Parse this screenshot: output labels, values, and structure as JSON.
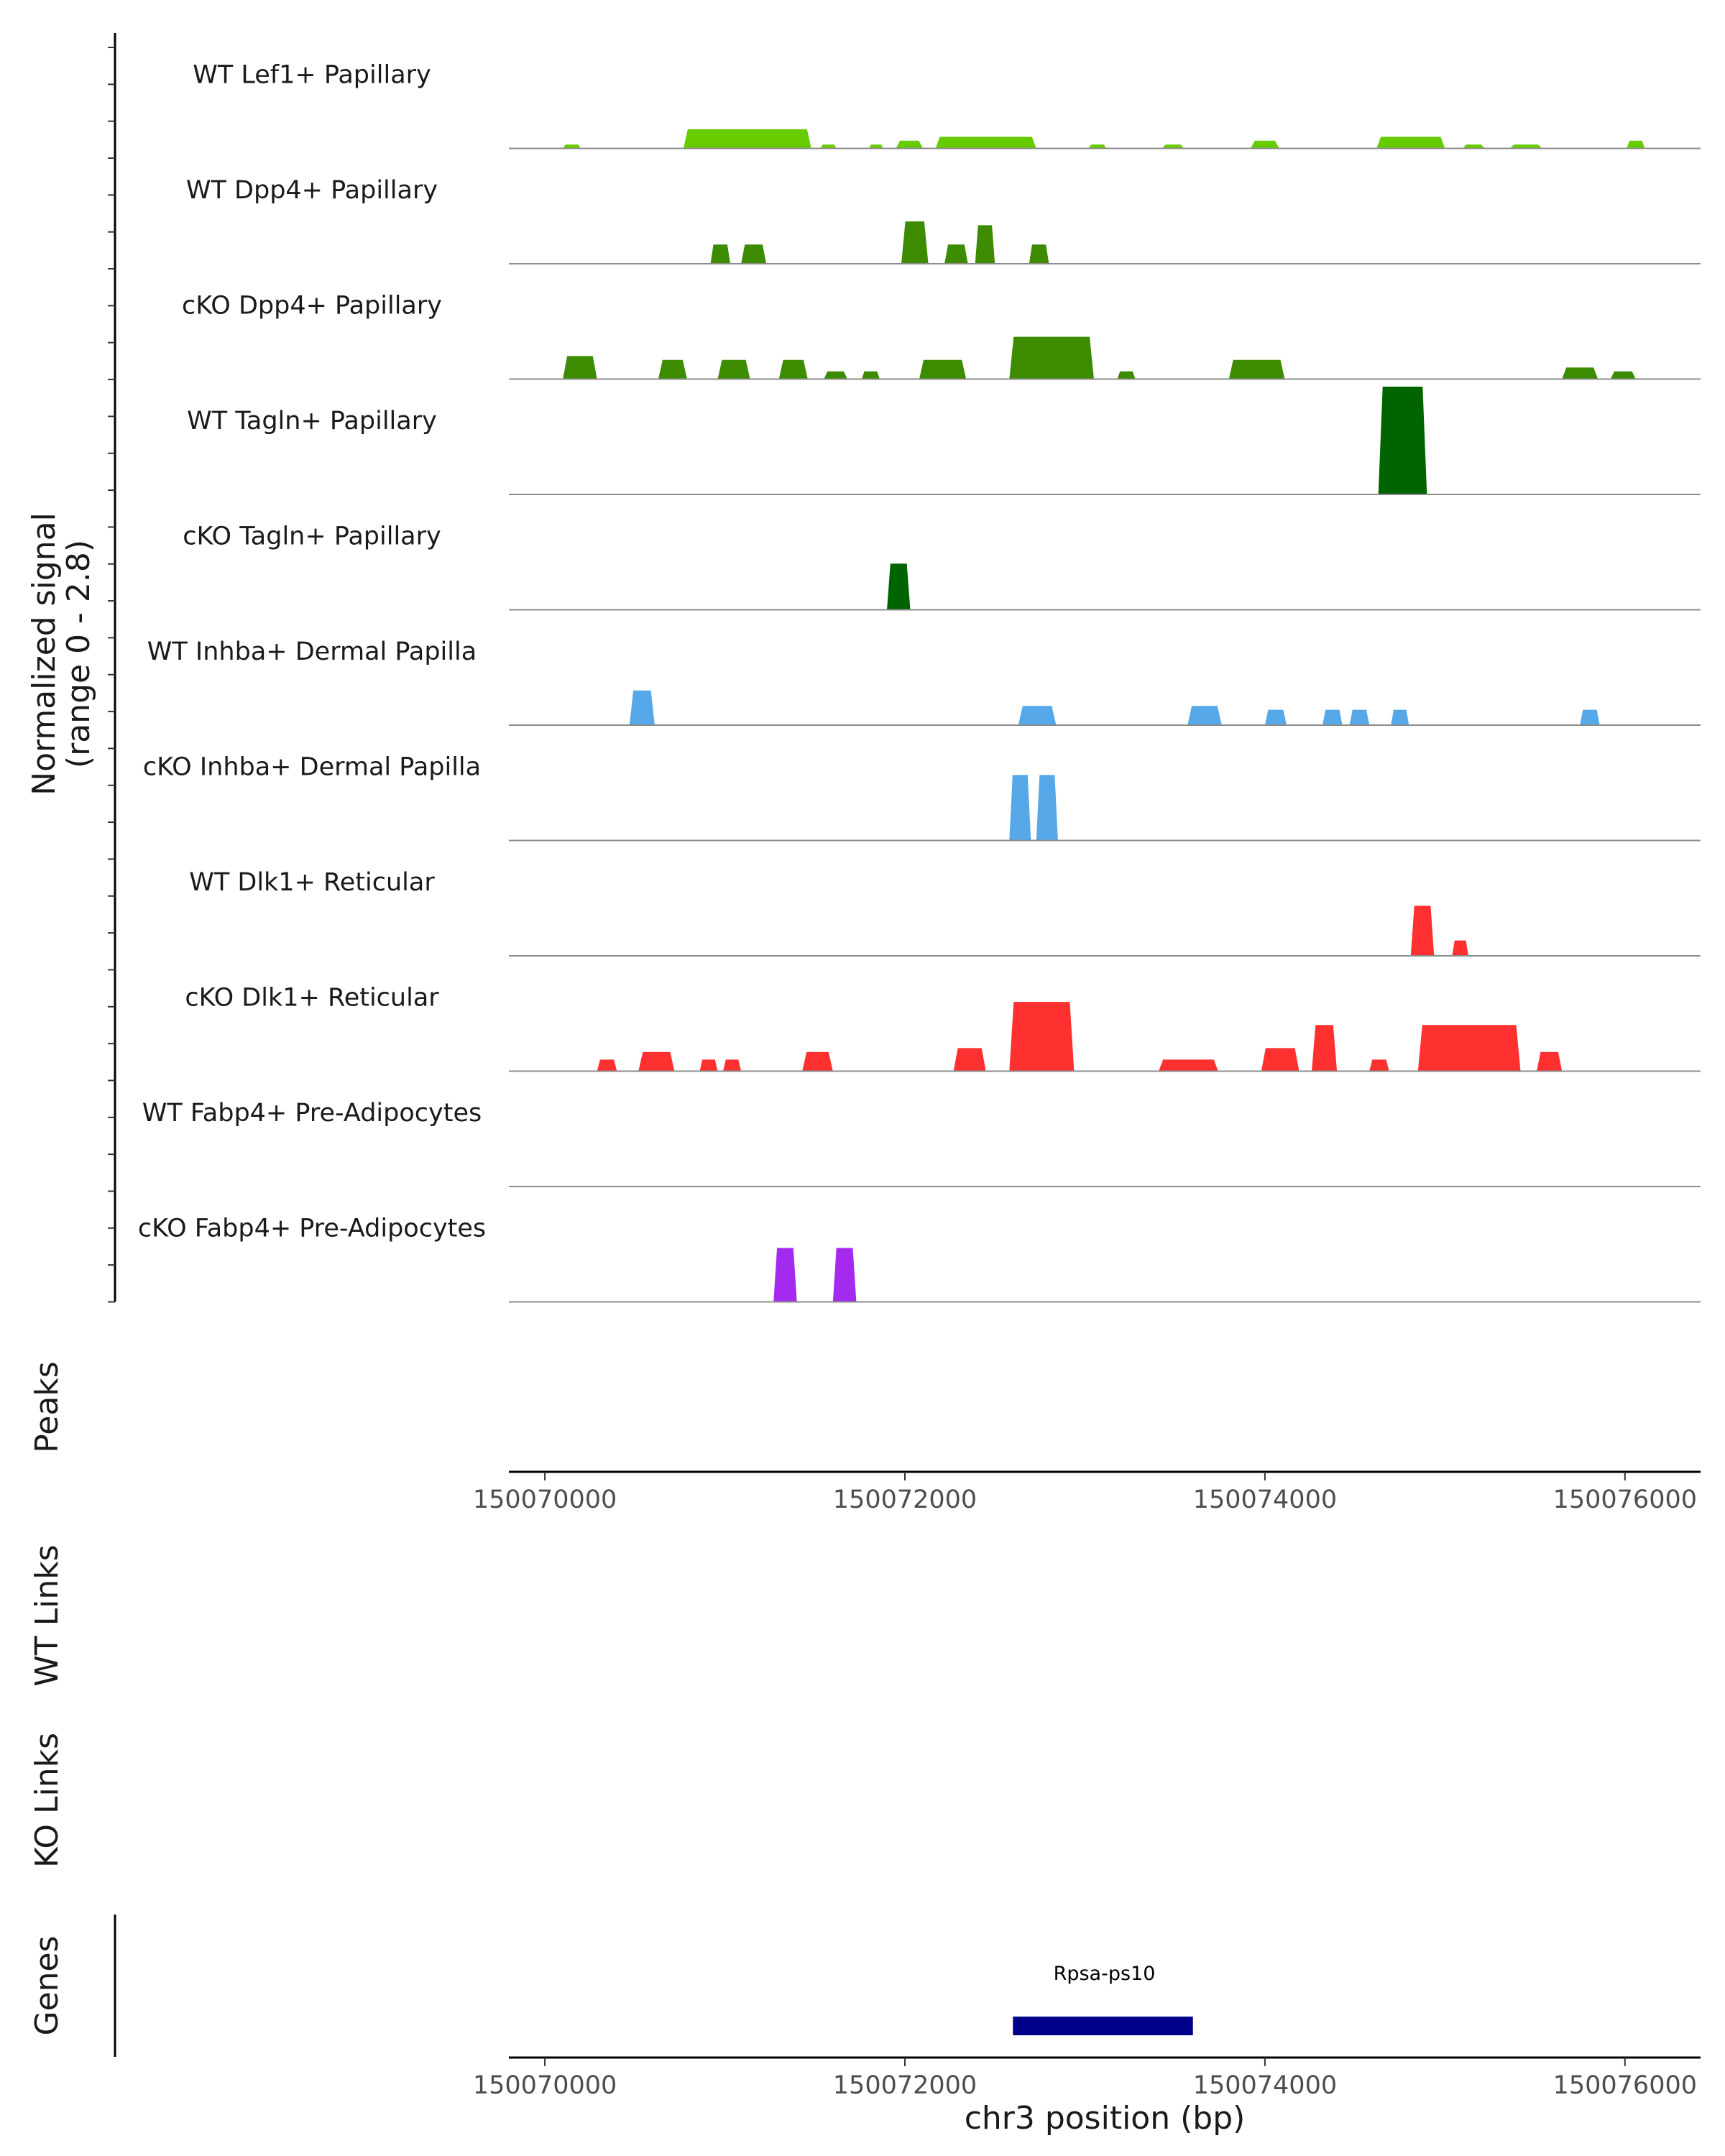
{
  "chart_data": {
    "type": "area",
    "title": "",
    "region": {
      "chrom": "chr3",
      "start": 150069800,
      "end": 150076420
    },
    "signal_panel": {
      "ylabel_line1": "Normalized signal",
      "ylabel_line2": "(range 0 - 2.8)",
      "ylim": [
        0,
        2.8
      ],
      "tracks": [
        {
          "name": "WT Lef1+ Papillary",
          "color": "#66cc00",
          "segments": [
            [
              150070100,
              150070200,
              0.1
            ],
            [
              150070770,
              150071480,
              0.5
            ],
            [
              150071530,
              150071620,
              0.1
            ],
            [
              150071800,
              150071880,
              0.1
            ],
            [
              150071950,
              150072100,
              0.2
            ],
            [
              150072170,
              150072730,
              0.3
            ],
            [
              150073020,
              150073120,
              0.1
            ],
            [
              150073430,
              150073550,
              0.1
            ],
            [
              150073920,
              150074080,
              0.2
            ],
            [
              150074620,
              150075000,
              0.3
            ],
            [
              150075100,
              150075220,
              0.1
            ],
            [
              150075360,
              150075540,
              0.1
            ],
            [
              150076010,
              150076110,
              0.2
            ]
          ]
        },
        {
          "name": "WT Dpp4+ Papillary",
          "color": "#3d8b00",
          "segments": [
            [
              150070920,
              150071030,
              0.5
            ],
            [
              150071090,
              150071230,
              0.5
            ],
            [
              150071980,
              150072130,
              1.1
            ],
            [
              150072220,
              150072350,
              0.5
            ],
            [
              150072390,
              150072500,
              1.0
            ],
            [
              150072690,
              150072800,
              0.5
            ]
          ]
        },
        {
          "name": "cKO Dpp4+ Papillary",
          "color": "#3d8b00",
          "segments": [
            [
              150070100,
              150070290,
              0.6
            ],
            [
              150070630,
              150070790,
              0.5
            ],
            [
              150070960,
              150071140,
              0.5
            ],
            [
              150071300,
              150071460,
              0.5
            ],
            [
              150071550,
              150071680,
              0.2
            ],
            [
              150071760,
              150071860,
              0.2
            ],
            [
              150072080,
              150072340,
              0.5
            ],
            [
              150072580,
              150073050,
              1.1
            ],
            [
              150073180,
              150073280,
              0.2
            ],
            [
              150073800,
              150074110,
              0.5
            ],
            [
              150075650,
              150075850,
              0.3
            ],
            [
              150075920,
              150076060,
              0.2
            ]
          ]
        },
        {
          "name": "WT Tagln+ Papillary",
          "color": "#006400",
          "segments": [
            [
              150074630,
              150074900,
              2.8
            ]
          ]
        },
        {
          "name": "cKO Tagln+ Papillary",
          "color": "#006400",
          "segments": [
            [
              150071900,
              150072030,
              1.2
            ]
          ]
        },
        {
          "name": "WT Inhba+ Dermal Papilla",
          "color": "#56a8e8",
          "segments": [
            [
              150070470,
              150070610,
              0.9
            ],
            [
              150072630,
              150072840,
              0.5
            ],
            [
              150073570,
              150073760,
              0.5
            ],
            [
              150074000,
              150074120,
              0.4
            ],
            [
              150074320,
              150074430,
              0.4
            ],
            [
              150074470,
              150074580,
              0.4
            ],
            [
              150074700,
              150074800,
              0.4
            ],
            [
              150075750,
              150075860,
              0.4
            ]
          ]
        },
        {
          "name": "cKO Inhba+ Dermal Papilla",
          "color": "#56a8e8",
          "segments": [
            [
              150072580,
              150072700,
              1.7
            ],
            [
              150072730,
              150072850,
              1.7
            ]
          ]
        },
        {
          "name": "WT Dlk1+ Reticular",
          "color": "#ff3030",
          "segments": [
            [
              150074810,
              150074940,
              1.3
            ],
            [
              150075040,
              150075130,
              0.4
            ]
          ]
        },
        {
          "name": "cKO Dlk1+ Reticular",
          "color": "#ff3030",
          "segments": [
            [
              150070290,
              150070400,
              0.3
            ],
            [
              150070520,
              150070720,
              0.5
            ],
            [
              150070860,
              150070960,
              0.3
            ],
            [
              150070990,
              150071090,
              0.3
            ],
            [
              150071430,
              150071600,
              0.5
            ],
            [
              150072270,
              150072450,
              0.6
            ],
            [
              150072580,
              150072940,
              1.8
            ],
            [
              150073410,
              150073740,
              0.3
            ],
            [
              150073980,
              150074190,
              0.6
            ],
            [
              150074260,
              150074400,
              1.2
            ],
            [
              150074580,
              150074690,
              0.3
            ],
            [
              150074850,
              150075420,
              1.2
            ],
            [
              150075510,
              150075650,
              0.5
            ]
          ]
        },
        {
          "name": "WT Fabp4+ Pre-Adipocytes",
          "color": "#a52af0",
          "segments": []
        },
        {
          "name": "cKO Fabp4+ Pre-Adipocytes",
          "color": "#a52af0",
          "segments": [
            [
              150071270,
              150071400,
              1.4
            ],
            [
              150071600,
              150071730,
              1.4
            ]
          ]
        }
      ]
    },
    "peaks_label": "Peaks",
    "wt_links_label": "WT Links",
    "ko_links_label": "KO Links",
    "genes_label": "Genes",
    "genes": [
      {
        "name": "Rpsa-ps10",
        "start": 150072600,
        "end": 150073600,
        "color": "#00008b"
      }
    ],
    "x_ticks": [
      150070000,
      150072000,
      150074000,
      150076000
    ],
    "x_tick_labels": [
      "150070000",
      "150072000",
      "150074000",
      "150076000"
    ],
    "xlabel": "chr3 position (bp)"
  }
}
